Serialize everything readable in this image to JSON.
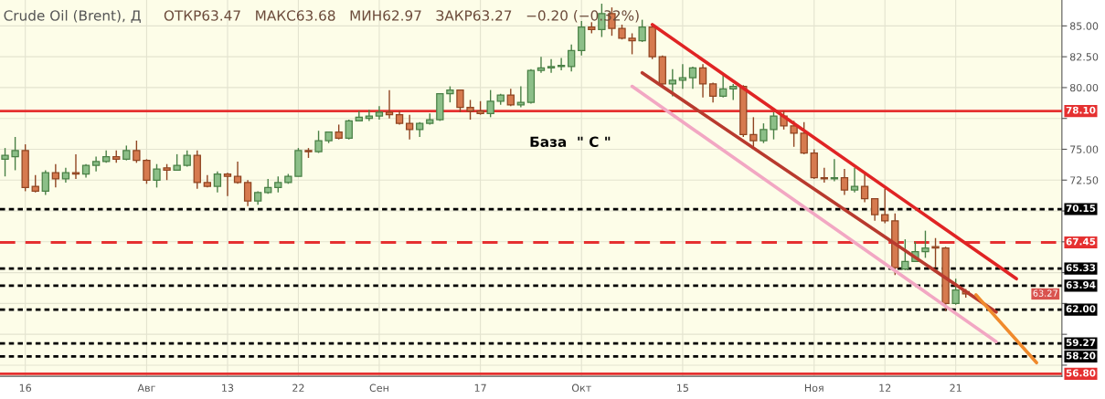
{
  "chart_data": {
    "type": "candlestick",
    "title": "Crude Oil (Brent), Д",
    "subtitle": "ОТКР63.47   МАКС63.68   МИН62.97   ЗАКР63.27   −0.20 (−0.32%)",
    "categories": [
      null,
      null,
      "16",
      null,
      null,
      null,
      null,
      null,
      null,
      null,
      null,
      null,
      null,
      null,
      "Авг",
      null,
      null,
      null,
      null,
      null,
      null,
      null,
      "13",
      null,
      null,
      null,
      null,
      null,
      null,
      "22",
      null,
      null,
      null,
      null,
      null,
      null,
      null,
      "Сен",
      null,
      null,
      null,
      null,
      null,
      null,
      null,
      null,
      null,
      "17",
      null,
      null,
      null,
      null,
      null,
      null,
      null,
      null,
      null,
      "Окт",
      null,
      null,
      null,
      null,
      null,
      null,
      null,
      null,
      null,
      "15",
      null,
      null,
      null,
      null,
      null,
      null,
      null,
      null,
      null,
      null,
      null,
      null,
      "Ноя",
      null,
      null,
      null,
      null,
      null,
      null,
      "12",
      null,
      null,
      null,
      null,
      null,
      null,
      "21",
      null,
      null,
      null,
      null,
      null,
      null,
      null,
      null,
      null,
      null
    ],
    "ylim": [
      56.6,
      87.1
    ],
    "yticks": [
      {
        "value": 57.5,
        "label": null
      },
      {
        "value": 60,
        "label": null
      },
      {
        "value": 62.5,
        "label": null
      },
      {
        "value": 65,
        "label": null
      },
      {
        "value": 67.5,
        "label": null
      },
      {
        "value": 70,
        "label": null
      },
      {
        "value": 72.5,
        "label": "72.50"
      },
      {
        "value": 75,
        "label": "75.00"
      },
      {
        "value": 77.5,
        "label": null
      },
      {
        "value": 80,
        "label": "80.00"
      },
      {
        "value": 82.5,
        "label": "82.50"
      },
      {
        "value": 85,
        "label": "85.00"
      }
    ],
    "grid": true,
    "series": [
      {
        "colors": [
          "#8cbf88",
          "#8cbf88",
          "#d67a4f",
          "#d67a4f",
          "#8cbf88",
          "#d67a4f",
          "#8cbf88",
          "#d67a4f",
          "#8cbf88",
          "#8cbf88",
          "#8cbf88",
          "#d67a4f",
          "#8cbf88",
          "#d67a4f",
          "#d67a4f",
          "#8cbf88",
          "#d67a4f",
          "#8cbf88",
          "#8cbf88",
          "#d67a4f",
          "#d67a4f",
          "#8cbf88",
          "#d67a4f",
          "#d67a4f",
          "#d67a4f",
          "#8cbf88",
          "#8cbf88",
          "#8cbf88",
          "#8cbf88",
          "#8cbf88",
          "#d67a4f",
          "#8cbf88",
          "#8cbf88",
          "#d67a4f",
          "#8cbf88",
          "#8cbf88",
          "#8cbf88",
          "#8cbf88",
          "#d67a4f",
          "#d67a4f",
          "#d67a4f",
          "#8cbf88",
          "#8cbf88",
          "#8cbf88",
          "#8cbf88",
          "#d67a4f",
          "#d67a4f",
          "#d67a4f",
          "#8cbf88",
          "#8cbf88",
          "#d67a4f",
          "#8cbf88",
          "#8cbf88",
          "#8cbf88",
          "#8cbf88",
          "#8cbf88",
          "#8cbf88",
          "#8cbf88",
          "#d67a4f",
          "#8cbf88",
          "#d67a4f",
          "#d67a4f",
          "#d67a4f",
          "#8cbf88",
          "#d67a4f",
          "#d67a4f",
          "#8cbf88",
          "#8cbf88",
          "#8cbf88",
          "#d67a4f",
          "#d67a4f",
          "#8cbf88",
          "#8cbf88",
          "#d67a4f",
          "#d67a4f",
          "#8cbf88",
          "#8cbf88",
          "#d67a4f",
          "#d67a4f",
          "#d67a4f",
          "#d67a4f",
          "#d67a4f",
          "#8cbf88",
          "#d67a4f",
          "#8cbf88",
          "#d67a4f",
          "#d67a4f",
          "#d67a4f",
          "#d67a4f",
          "#8cbf88",
          "#8cbf88",
          "#8cbf88",
          "#d67a4f",
          "#d67a4f",
          "#8cbf88",
          "#d67a4f",
          null,
          null,
          null,
          null,
          null,
          null,
          null,
          null,
          null
        ],
        "ohlc": [
          [
            74.2,
            75.1,
            72.8,
            74.5
          ],
          [
            74.4,
            76.0,
            73.3,
            74.9
          ],
          [
            74.9,
            75.4,
            71.6,
            71.9
          ],
          [
            72.0,
            72.9,
            71.5,
            71.6
          ],
          [
            71.6,
            73.3,
            71.3,
            73.1
          ],
          [
            73.1,
            73.8,
            71.9,
            72.6
          ],
          [
            72.6,
            73.5,
            72.3,
            73.1
          ],
          [
            73.1,
            74.6,
            72.6,
            73.0
          ],
          [
            73.0,
            73.8,
            72.7,
            73.7
          ],
          [
            73.7,
            74.4,
            73.2,
            74.0
          ],
          [
            74.0,
            74.9,
            73.9,
            74.4
          ],
          [
            74.4,
            74.9,
            73.9,
            74.2
          ],
          [
            74.2,
            75.3,
            74.1,
            74.9
          ],
          [
            74.9,
            75.7,
            73.9,
            74.1
          ],
          [
            74.1,
            74.2,
            72.2,
            72.5
          ],
          [
            72.5,
            73.8,
            71.9,
            73.4
          ],
          [
            73.5,
            73.8,
            72.5,
            73.3
          ],
          [
            73.3,
            74.6,
            73.3,
            73.7
          ],
          [
            73.7,
            74.9,
            73.6,
            74.5
          ],
          [
            74.5,
            74.9,
            71.8,
            72.3
          ],
          [
            72.3,
            72.9,
            71.9,
            72.0
          ],
          [
            72.0,
            73.2,
            71.5,
            73.0
          ],
          [
            73.0,
            73.1,
            71.2,
            72.8
          ],
          [
            72.8,
            74.0,
            72.2,
            72.3
          ],
          [
            72.3,
            72.5,
            70.4,
            70.8
          ],
          [
            70.8,
            71.6,
            70.5,
            71.5
          ],
          [
            71.5,
            72.6,
            71.4,
            71.9
          ],
          [
            71.9,
            72.8,
            71.5,
            72.3
          ],
          [
            72.3,
            73.0,
            72.2,
            72.8
          ],
          [
            72.8,
            75.1,
            72.8,
            74.9
          ],
          [
            74.9,
            75.1,
            74.3,
            74.8
          ],
          [
            74.8,
            76.5,
            74.7,
            75.7
          ],
          [
            75.7,
            76.4,
            75.5,
            76.4
          ],
          [
            76.4,
            77.0,
            75.8,
            75.9
          ],
          [
            75.9,
            77.4,
            75.8,
            77.3
          ],
          [
            77.3,
            78.1,
            77.3,
            77.6
          ],
          [
            77.5,
            78.2,
            77.3,
            77.7
          ],
          [
            77.7,
            78.5,
            77.4,
            78.0
          ],
          [
            78.0,
            79.8,
            77.5,
            77.8
          ],
          [
            77.8,
            78.1,
            77.0,
            77.1
          ],
          [
            77.1,
            77.8,
            75.8,
            76.6
          ],
          [
            76.6,
            77.2,
            76.0,
            77.1
          ],
          [
            77.1,
            77.9,
            77.0,
            77.4
          ],
          [
            77.4,
            79.5,
            77.3,
            79.5
          ],
          [
            79.5,
            80.1,
            78.8,
            79.8
          ],
          [
            79.8,
            79.8,
            78.0,
            78.4
          ],
          [
            78.4,
            79.0,
            77.4,
            78.1
          ],
          [
            78.1,
            78.9,
            77.8,
            77.9
          ],
          [
            77.9,
            79.8,
            77.6,
            78.9
          ],
          [
            78.9,
            79.5,
            78.6,
            79.4
          ],
          [
            79.4,
            79.9,
            78.5,
            78.6
          ],
          [
            78.6,
            80.1,
            78.4,
            78.8
          ],
          [
            78.8,
            81.5,
            78.7,
            81.4
          ],
          [
            81.4,
            82.5,
            81.2,
            81.6
          ],
          [
            81.6,
            82.3,
            81.2,
            81.7
          ],
          [
            81.7,
            82.4,
            81.4,
            81.8
          ],
          [
            81.7,
            83.5,
            81.3,
            83.0
          ],
          [
            83.0,
            85.4,
            82.6,
            84.9
          ],
          [
            84.9,
            85.3,
            84.4,
            84.7
          ],
          [
            84.7,
            86.8,
            84.1,
            86.0
          ],
          [
            86.0,
            86.5,
            84.2,
            84.8
          ],
          [
            84.8,
            85.1,
            83.9,
            84.0
          ],
          [
            84.0,
            84.4,
            82.7,
            83.8
          ],
          [
            83.8,
            85.5,
            83.7,
            84.9
          ],
          [
            84.9,
            85.1,
            82.3,
            82.5
          ],
          [
            82.5,
            82.6,
            80.0,
            80.3
          ],
          [
            80.3,
            81.5,
            79.3,
            80.6
          ],
          [
            80.6,
            81.9,
            79.9,
            80.8
          ],
          [
            80.8,
            81.7,
            79.9,
            81.6
          ],
          [
            81.6,
            81.9,
            79.2,
            80.3
          ],
          [
            80.3,
            80.4,
            78.8,
            79.3
          ],
          [
            79.3,
            81.0,
            79.2,
            79.9
          ],
          [
            79.9,
            80.3,
            79.0,
            80.1
          ],
          [
            80.1,
            80.2,
            76.0,
            76.2
          ],
          [
            76.2,
            77.6,
            75.2,
            75.7
          ],
          [
            75.7,
            77.1,
            75.5,
            76.6
          ],
          [
            76.6,
            78.0,
            75.8,
            77.7
          ],
          [
            77.7,
            78.1,
            76.6,
            76.9
          ],
          [
            76.9,
            77.3,
            75.2,
            76.3
          ],
          [
            76.3,
            77.2,
            74.6,
            74.7
          ],
          [
            74.7,
            75.0,
            72.6,
            72.7
          ],
          [
            72.7,
            73.5,
            72.3,
            72.6
          ],
          [
            72.6,
            74.2,
            72.4,
            72.7
          ],
          [
            72.7,
            73.4,
            71.3,
            71.7
          ],
          [
            71.7,
            73.5,
            71.5,
            72.0
          ],
          [
            72.0,
            73.0,
            70.7,
            71.0
          ],
          [
            71.0,
            71.0,
            69.2,
            69.7
          ],
          [
            69.7,
            71.8,
            69.0,
            69.2
          ],
          [
            69.2,
            69.8,
            64.8,
            65.4
          ],
          [
            65.3,
            67.7,
            65.2,
            65.9
          ],
          [
            65.9,
            67.5,
            65.9,
            66.7
          ],
          [
            66.7,
            68.4,
            66.2,
            67.0
          ],
          [
            67.1,
            67.8,
            65.4,
            67.0
          ],
          [
            67.0,
            67.1,
            61.9,
            62.5
          ],
          [
            62.5,
            64.5,
            62.4,
            63.6
          ],
          [
            63.47,
            63.68,
            62.97,
            63.27
          ],
          null,
          null,
          null,
          null,
          null,
          null,
          null,
          null,
          null
        ]
      },
      {
        "type": "line",
        "color": "#e02424",
        "values": [
          null,
          null,
          null,
          null,
          null,
          null,
          null,
          null,
          null,
          null,
          null,
          null,
          null,
          null,
          null,
          null,
          null,
          null,
          null,
          null,
          null,
          null,
          null,
          null,
          null,
          null,
          null,
          null,
          null,
          null,
          null,
          null,
          null,
          null,
          null,
          null,
          null,
          null,
          null,
          null,
          null,
          null,
          null,
          null,
          null,
          null,
          null,
          null,
          null,
          null,
          null,
          null,
          null,
          null,
          null,
          null,
          null,
          null,
          null,
          null,
          null,
          null,
          null,
          null,
          85.1,
          null,
          null,
          null,
          null,
          null,
          null,
          null,
          null,
          null,
          null,
          null,
          null,
          null,
          null,
          null,
          null,
          null,
          null,
          null,
          null,
          null,
          null,
          null,
          null,
          null,
          null,
          null,
          null,
          null,
          null,
          null,
          null,
          null,
          null,
          null,
          64.5,
          null,
          null,
          null,
          null
        ]
      },
      {
        "type": "line",
        "color": "#b83a2e",
        "values": [
          null,
          null,
          null,
          null,
          null,
          null,
          null,
          null,
          null,
          null,
          null,
          null,
          null,
          null,
          null,
          null,
          null,
          null,
          null,
          null,
          null,
          null,
          null,
          null,
          null,
          null,
          null,
          null,
          null,
          null,
          null,
          null,
          null,
          null,
          null,
          null,
          null,
          null,
          null,
          null,
          null,
          null,
          null,
          null,
          null,
          null,
          null,
          null,
          null,
          null,
          null,
          null,
          null,
          null,
          null,
          null,
          null,
          null,
          null,
          null,
          null,
          null,
          null,
          81.2,
          null,
          null,
          null,
          null,
          null,
          null,
          null,
          null,
          null,
          null,
          null,
          null,
          null,
          null,
          null,
          null,
          null,
          null,
          null,
          null,
          null,
          null,
          null,
          null,
          null,
          null,
          null,
          null,
          null,
          null,
          null,
          null,
          null,
          null,
          61.8,
          null,
          null,
          null,
          null,
          null,
          null
        ]
      },
      {
        "type": "line",
        "color": "#f2a7c3",
        "values": [
          null,
          null,
          null,
          null,
          null,
          null,
          null,
          null,
          null,
          null,
          null,
          null,
          null,
          null,
          null,
          null,
          null,
          null,
          null,
          null,
          null,
          null,
          null,
          null,
          null,
          null,
          null,
          null,
          null,
          null,
          null,
          null,
          null,
          null,
          null,
          null,
          null,
          null,
          null,
          null,
          null,
          null,
          null,
          null,
          null,
          null,
          null,
          null,
          null,
          null,
          null,
          null,
          null,
          null,
          null,
          null,
          null,
          null,
          null,
          null,
          null,
          null,
          80.1,
          null,
          null,
          null,
          null,
          null,
          null,
          null,
          null,
          null,
          null,
          null,
          null,
          null,
          null,
          null,
          null,
          null,
          null,
          null,
          null,
          null,
          null,
          null,
          null,
          null,
          null,
          null,
          null,
          null,
          null,
          null,
          null,
          null,
          null,
          null,
          59.4,
          null,
          null,
          null,
          null,
          null,
          null
        ]
      },
      {
        "type": "line",
        "color": "#f08a2c",
        "values": [
          null,
          null,
          null,
          null,
          null,
          null,
          null,
          null,
          null,
          null,
          null,
          null,
          null,
          null,
          null,
          null,
          null,
          null,
          null,
          null,
          null,
          null,
          null,
          null,
          null,
          null,
          null,
          null,
          null,
          null,
          null,
          null,
          null,
          null,
          null,
          null,
          null,
          null,
          null,
          null,
          null,
          null,
          null,
          null,
          null,
          null,
          null,
          null,
          null,
          null,
          null,
          null,
          null,
          null,
          null,
          null,
          null,
          null,
          null,
          null,
          null,
          null,
          null,
          null,
          null,
          null,
          null,
          null,
          null,
          null,
          null,
          null,
          null,
          null,
          null,
          null,
          null,
          null,
          null,
          null,
          null,
          null,
          null,
          null,
          null,
          null,
          null,
          null,
          null,
          null,
          null,
          null,
          null,
          null,
          null,
          null,
          63.2,
          null,
          null,
          null,
          null,
          null,
          57.7,
          null,
          null
        ]
      }
    ],
    "ref_lines": [
      {
        "axis": "y",
        "value": 78.1,
        "label": "78.10",
        "color": "#e53030",
        "line_style": "solid"
      },
      {
        "axis": "y",
        "value": 70.15,
        "label": "70.15",
        "color": "#000000",
        "line_style": "dotted"
      },
      {
        "axis": "y",
        "value": 67.45,
        "label": "67.45",
        "color": "#e53030",
        "line_style": "dashed"
      },
      {
        "axis": "y",
        "value": 65.33,
        "label": "65.33",
        "color": "#000000",
        "line_style": "dotted"
      },
      {
        "axis": "y",
        "value": 63.94,
        "label": "63.94",
        "color": "#000000",
        "line_style": "dotted"
      },
      {
        "axis": "y",
        "value": 62.0,
        "label": "62.00",
        "color": "#000000",
        "line_style": "dotted"
      },
      {
        "axis": "y",
        "value": 59.27,
        "label": "59.27",
        "color": "#000000",
        "line_style": "dotted"
      },
      {
        "axis": "y",
        "value": 58.2,
        "label": "58.20",
        "color": "#000000",
        "line_style": "dotted"
      },
      {
        "axis": "y",
        "value": 56.8,
        "label": "56.80",
        "color": "#e53030",
        "line_style": "solid"
      }
    ],
    "annotations": [
      "База  \" С \"",
      "63.27"
    ]
  }
}
